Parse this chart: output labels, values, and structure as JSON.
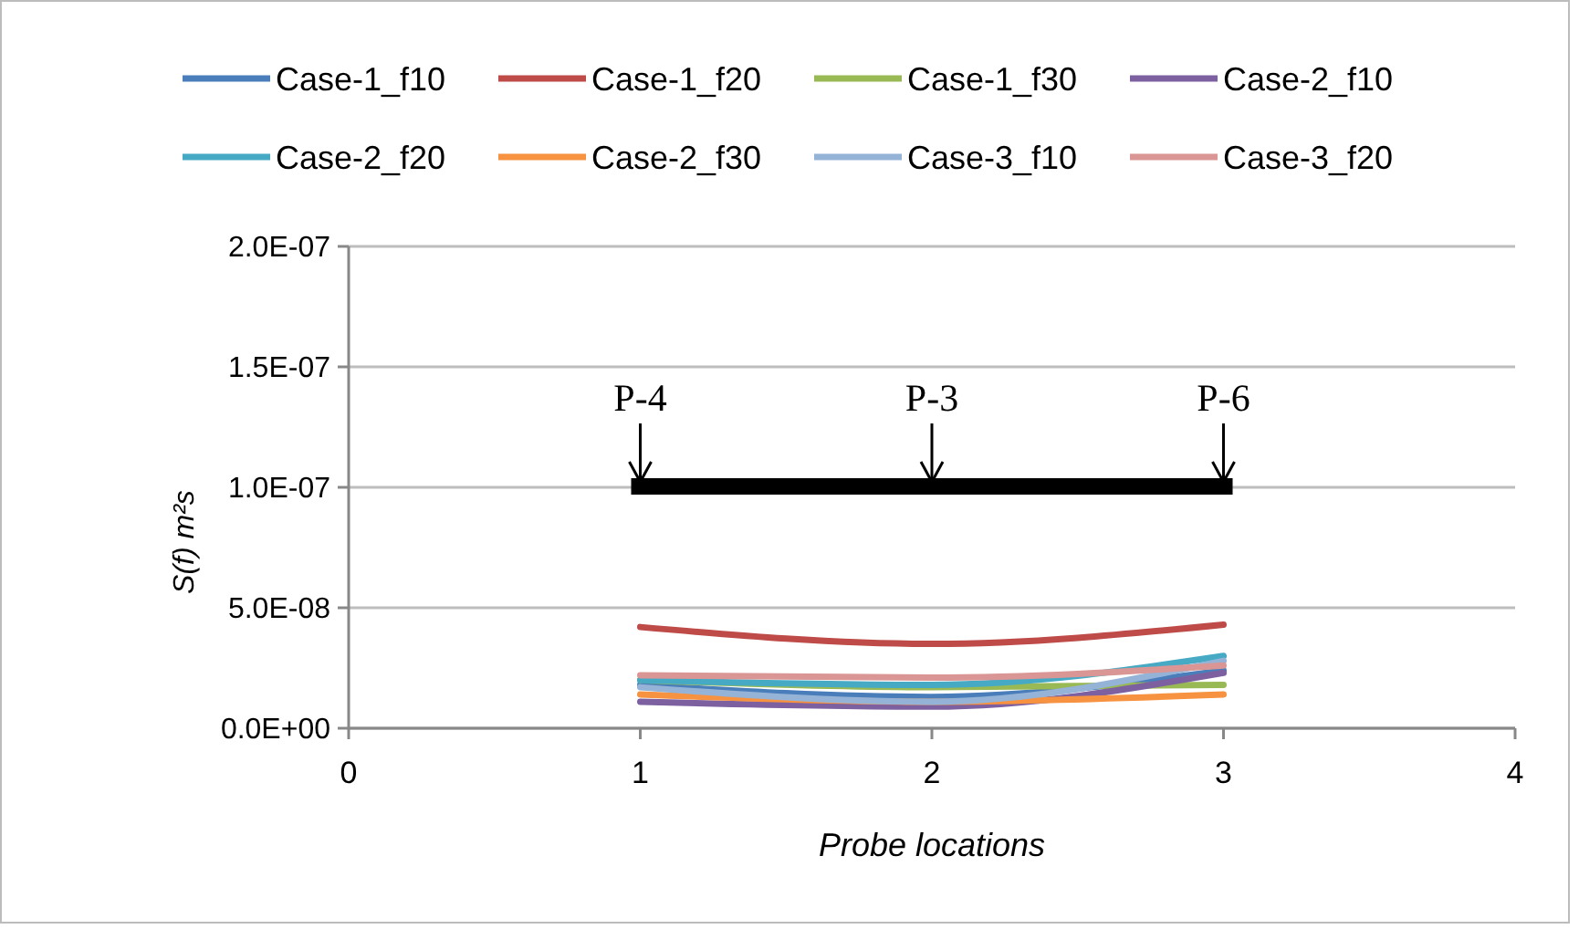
{
  "chart_data": {
    "type": "line",
    "xlabel": "Probe locations",
    "ylabel": "S(f) m²s",
    "x": [
      1,
      2,
      3
    ],
    "series": [
      {
        "name": "Case-1_f10",
        "color": "#4a7ebb",
        "values": [
          1.8e-08,
          1.3e-08,
          2.4e-08
        ]
      },
      {
        "name": "Case-1_f20",
        "color": "#be4b48",
        "values": [
          4.2e-08,
          3.5e-08,
          4.3e-08
        ]
      },
      {
        "name": "Case-1_f30",
        "color": "#98b954",
        "values": [
          2e-08,
          1.7e-08,
          1.8e-08
        ]
      },
      {
        "name": "Case-2_f10",
        "color": "#7d60a0",
        "values": [
          1.1e-08,
          9e-09,
          2.3e-08
        ]
      },
      {
        "name": "Case-2_f20",
        "color": "#46aac5",
        "values": [
          2e-08,
          1.8e-08,
          3e-08
        ]
      },
      {
        "name": "Case-2_f30",
        "color": "#f69240",
        "values": [
          1.4e-08,
          1.1e-08,
          1.4e-08
        ]
      },
      {
        "name": "Case-3_f10",
        "color": "#95b3d7",
        "values": [
          1.7e-08,
          1.1e-08,
          2.8e-08
        ]
      },
      {
        "name": "Case-3_f20",
        "color": "#d99694",
        "values": [
          2.2e-08,
          2.1e-08,
          2.6e-08
        ]
      }
    ],
    "xlim": [
      0,
      4
    ],
    "xticks": [
      0,
      1,
      2,
      3,
      4
    ],
    "ylim": [
      0,
      2e-07
    ],
    "yticks": [
      {
        "value": 0,
        "label": "0.0E+00"
      },
      {
        "value": 5e-08,
        "label": "5.0E-08"
      },
      {
        "value": 1e-07,
        "label": "1.0E-07"
      },
      {
        "value": 1.5e-07,
        "label": "1.5E-07"
      },
      {
        "value": 2e-07,
        "label": "2.0E-07"
      }
    ],
    "grid": "y",
    "legend": "top",
    "marker": "none",
    "line_style": "solid",
    "annotations": [
      "P-4",
      "P-3",
      "P-6"
    ]
  }
}
